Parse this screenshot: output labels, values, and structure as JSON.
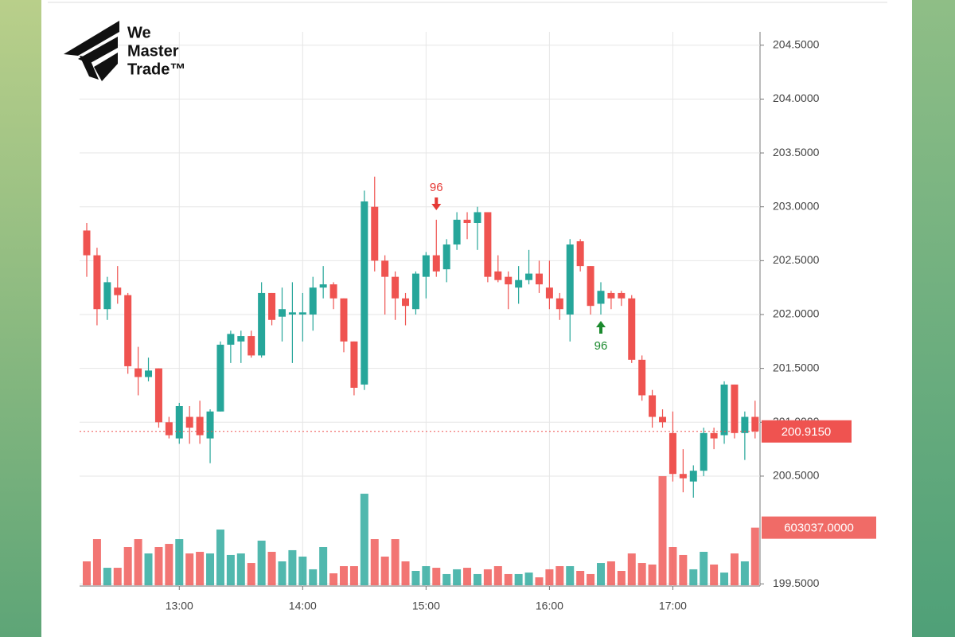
{
  "logo": {
    "lines": [
      "We",
      "Master",
      "Trade™"
    ]
  },
  "chart_data": {
    "type": "candlestick",
    "categories": [
      null,
      null,
      null,
      null,
      null,
      null,
      null,
      null,
      null,
      "13:00",
      null,
      null,
      null,
      null,
      null,
      null,
      null,
      null,
      null,
      null,
      null,
      "14:00",
      null,
      null,
      null,
      null,
      null,
      null,
      null,
      null,
      null,
      null,
      null,
      "15:00",
      null,
      null,
      null,
      null,
      null,
      null,
      null,
      null,
      null,
      null,
      null,
      "16:00",
      null,
      null,
      null,
      null,
      null,
      null,
      null,
      null,
      null,
      null,
      null,
      "17:00",
      null,
      null,
      null,
      null,
      null,
      null,
      null,
      null
    ],
    "open": [
      202.78,
      202.55,
      202.05,
      202.25,
      202.18,
      201.5,
      201.42,
      201.5,
      201.0,
      200.85,
      201.05,
      201.05,
      200.85,
      201.1,
      201.72,
      201.75,
      201.8,
      201.62,
      202.2,
      201.98,
      202.0,
      202.0,
      202.0,
      202.25,
      202.28,
      202.15,
      201.75,
      201.35,
      203.0,
      202.5,
      202.35,
      202.15,
      202.05,
      202.35,
      202.55,
      202.42,
      202.65,
      202.88,
      202.85,
      202.95,
      202.4,
      202.35,
      202.25,
      202.32,
      202.38,
      202.25,
      202.15,
      202.0,
      202.68,
      202.45,
      202.1,
      202.2,
      202.2,
      202.15,
      201.58,
      201.25,
      201.05,
      200.9,
      200.52,
      200.45,
      200.55,
      200.9,
      200.88,
      201.35,
      200.9,
      201.05
    ],
    "high": [
      202.85,
      202.62,
      202.35,
      202.45,
      202.2,
      201.7,
      201.6,
      201.5,
      201.05,
      201.18,
      201.15,
      201.2,
      201.12,
      201.75,
      201.85,
      201.85,
      201.85,
      202.3,
      202.2,
      202.25,
      202.3,
      202.2,
      202.35,
      202.45,
      202.3,
      202.15,
      201.75,
      203.15,
      203.28,
      202.55,
      202.4,
      202.2,
      202.4,
      202.58,
      202.88,
      202.7,
      202.95,
      202.95,
      203.0,
      202.95,
      202.55,
      202.4,
      202.45,
      202.6,
      202.5,
      202.5,
      202.2,
      202.7,
      202.7,
      202.45,
      202.3,
      202.22,
      202.22,
      202.18,
      201.62,
      201.3,
      201.12,
      201.1,
      200.75,
      200.6,
      200.95,
      200.95,
      201.38,
      201.35,
      201.1,
      201.2
    ],
    "low": [
      202.35,
      201.9,
      201.95,
      202.1,
      201.45,
      201.25,
      201.38,
      200.95,
      200.85,
      200.8,
      200.8,
      200.8,
      200.62,
      201.1,
      201.55,
      201.55,
      201.6,
      201.6,
      201.9,
      201.75,
      201.55,
      201.75,
      201.85,
      202.15,
      202.05,
      201.65,
      201.25,
      201.3,
      202.4,
      202.0,
      201.95,
      201.9,
      202.0,
      202.15,
      202.35,
      202.3,
      202.6,
      202.7,
      202.6,
      202.3,
      202.3,
      202.05,
      202.1,
      202.28,
      202.2,
      202.05,
      201.95,
      201.75,
      202.4,
      202.0,
      202.0,
      202.05,
      202.08,
      201.55,
      201.2,
      200.95,
      200.95,
      200.45,
      200.35,
      200.3,
      200.5,
      200.75,
      200.8,
      200.85,
      200.65,
      200.85
    ],
    "close": [
      202.55,
      202.05,
      202.3,
      202.18,
      201.52,
      201.42,
      201.48,
      201.0,
      200.88,
      201.15,
      200.95,
      200.88,
      201.1,
      201.72,
      201.82,
      201.8,
      201.62,
      202.2,
      201.95,
      202.05,
      202.02,
      202.02,
      202.25,
      202.28,
      202.15,
      201.75,
      201.32,
      203.05,
      202.5,
      202.35,
      202.15,
      202.08,
      202.38,
      202.55,
      202.4,
      202.65,
      202.88,
      202.85,
      202.95,
      202.35,
      202.32,
      202.28,
      202.32,
      202.38,
      202.28,
      202.15,
      202.05,
      202.65,
      202.45,
      202.08,
      202.22,
      202.15,
      202.15,
      201.58,
      201.25,
      201.05,
      201.0,
      200.52,
      200.48,
      200.55,
      200.9,
      200.85,
      201.35,
      200.9,
      201.05,
      200.915
    ],
    "volume": [
      250000,
      483000,
      183000,
      183000,
      400000,
      483000,
      333000,
      400000,
      433000,
      483000,
      333000,
      350000,
      333000,
      583000,
      317000,
      333000,
      233000,
      467000,
      350000,
      250000,
      367000,
      300000,
      167000,
      400000,
      125000,
      200000,
      200000,
      958000,
      483000,
      300000,
      483000,
      250000,
      150000,
      200000,
      183000,
      117000,
      167000,
      183000,
      117000,
      167000,
      200000,
      117000,
      117000,
      133000,
      83000,
      167000,
      200000,
      200000,
      150000,
      117000,
      233000,
      250000,
      150000,
      333000,
      233000,
      217000,
      1142000,
      400000,
      317000,
      167000,
      350000,
      217000,
      133000,
      333000,
      250000,
      603037
    ],
    "signals": [
      null,
      null,
      null,
      null,
      null,
      null,
      null,
      null,
      null,
      null,
      null,
      null,
      null,
      null,
      null,
      null,
      null,
      null,
      null,
      null,
      null,
      null,
      null,
      null,
      null,
      null,
      null,
      null,
      null,
      null,
      null,
      null,
      null,
      null,
      {
        "label": "96",
        "direction": "down"
      },
      null,
      null,
      null,
      null,
      null,
      null,
      null,
      null,
      null,
      null,
      null,
      null,
      null,
      null,
      null,
      {
        "label": "96",
        "direction": "up"
      },
      null,
      null,
      null,
      null,
      null,
      null,
      null,
      null,
      null,
      null,
      null,
      null,
      null,
      null,
      null
    ],
    "up_color": "#26a69a",
    "down_color": "#ef5350",
    "ylim": [
      199.45,
      204.55
    ],
    "yticks": [
      {
        "value": 199.5,
        "label": "199.5000"
      },
      {
        "value": 200.5,
        "label": "200.5000"
      },
      {
        "value": 201.0,
        "label": "201.0000"
      },
      {
        "value": 201.5,
        "label": "201.5000"
      },
      {
        "value": 202.0,
        "label": "202.0000"
      },
      {
        "value": 202.5,
        "label": "202.5000"
      },
      {
        "value": 203.0,
        "label": "203.0000"
      },
      {
        "value": 203.5,
        "label": "203.5000"
      },
      {
        "value": 204.0,
        "label": "204.0000"
      },
      {
        "value": 204.5,
        "label": "204.5000"
      }
    ],
    "volume_ylim": [
      0,
      1200000
    ],
    "last_price": {
      "value": 200.915,
      "label": "200.9150"
    },
    "last_volume": {
      "value": 603037,
      "label": "603037.0000"
    },
    "grid": true
  }
}
